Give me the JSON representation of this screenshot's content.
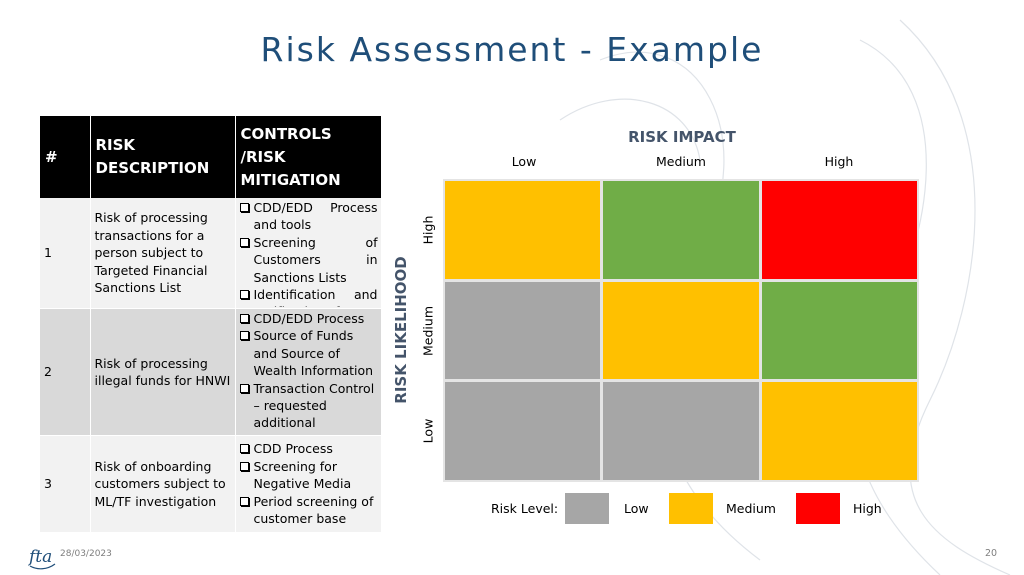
{
  "slide": {
    "title": "Risk Assessment - Example",
    "date": "28/03/2023",
    "page_number": "20"
  },
  "table": {
    "headers": [
      "#",
      "RISK DESCRIPTION",
      "CONTROLS /RISK MITIGATION"
    ],
    "rows": [
      {
        "num": "1",
        "description": "Risk of processing transactions for a person subject to Targeted Financial Sanctions List",
        "controls": [
          "CDD/EDD Process and tools",
          "Screening of Customers in Sanctions Lists",
          "Identification and verification of UBO"
        ]
      },
      {
        "num": "2",
        "description": "Risk of processing illegal funds for HNWI",
        "controls": [
          "CDD/EDD Process",
          "Source of Funds and Source of Wealth Information",
          "Transaction Control – requested additional documents"
        ]
      },
      {
        "num": "3",
        "description": "Risk of onboarding customers subject to ML/TF investigation",
        "controls": [
          "CDD Process",
          "Screening for Negative Media",
          "Period screening of customer base"
        ]
      }
    ]
  },
  "matrix": {
    "impact_title": "RISK IMPACT",
    "likelihood_title": "RISK LIKELIHOOD",
    "impact_levels": [
      "Low",
      "Medium",
      "High"
    ],
    "likelihood_levels": [
      "High",
      "Medium",
      "Low"
    ],
    "cells": [
      [
        "Medium",
        "Low-Green",
        "High"
      ],
      [
        "Low",
        "Medium",
        "Low-Green"
      ],
      [
        "Low",
        "Low",
        "Medium"
      ]
    ],
    "cell_colors": [
      [
        "#ffc000",
        "#70ad47",
        "#ff0000"
      ],
      [
        "#a6a6a6",
        "#ffc000",
        "#70ad47"
      ],
      [
        "#a6a6a6",
        "#a6a6a6",
        "#ffc000"
      ]
    ]
  },
  "legend": {
    "label": "Risk Level:",
    "items": [
      {
        "label": "Low",
        "color": "#a6a6a6"
      },
      {
        "label": "Medium",
        "color": "#ffc000"
      },
      {
        "label": "High",
        "color": "#ff0000"
      }
    ]
  },
  "colors": {
    "title": "#1f4e79",
    "header_bg": "#000000",
    "axis_title": "#44546a"
  },
  "logo_text": "fta"
}
